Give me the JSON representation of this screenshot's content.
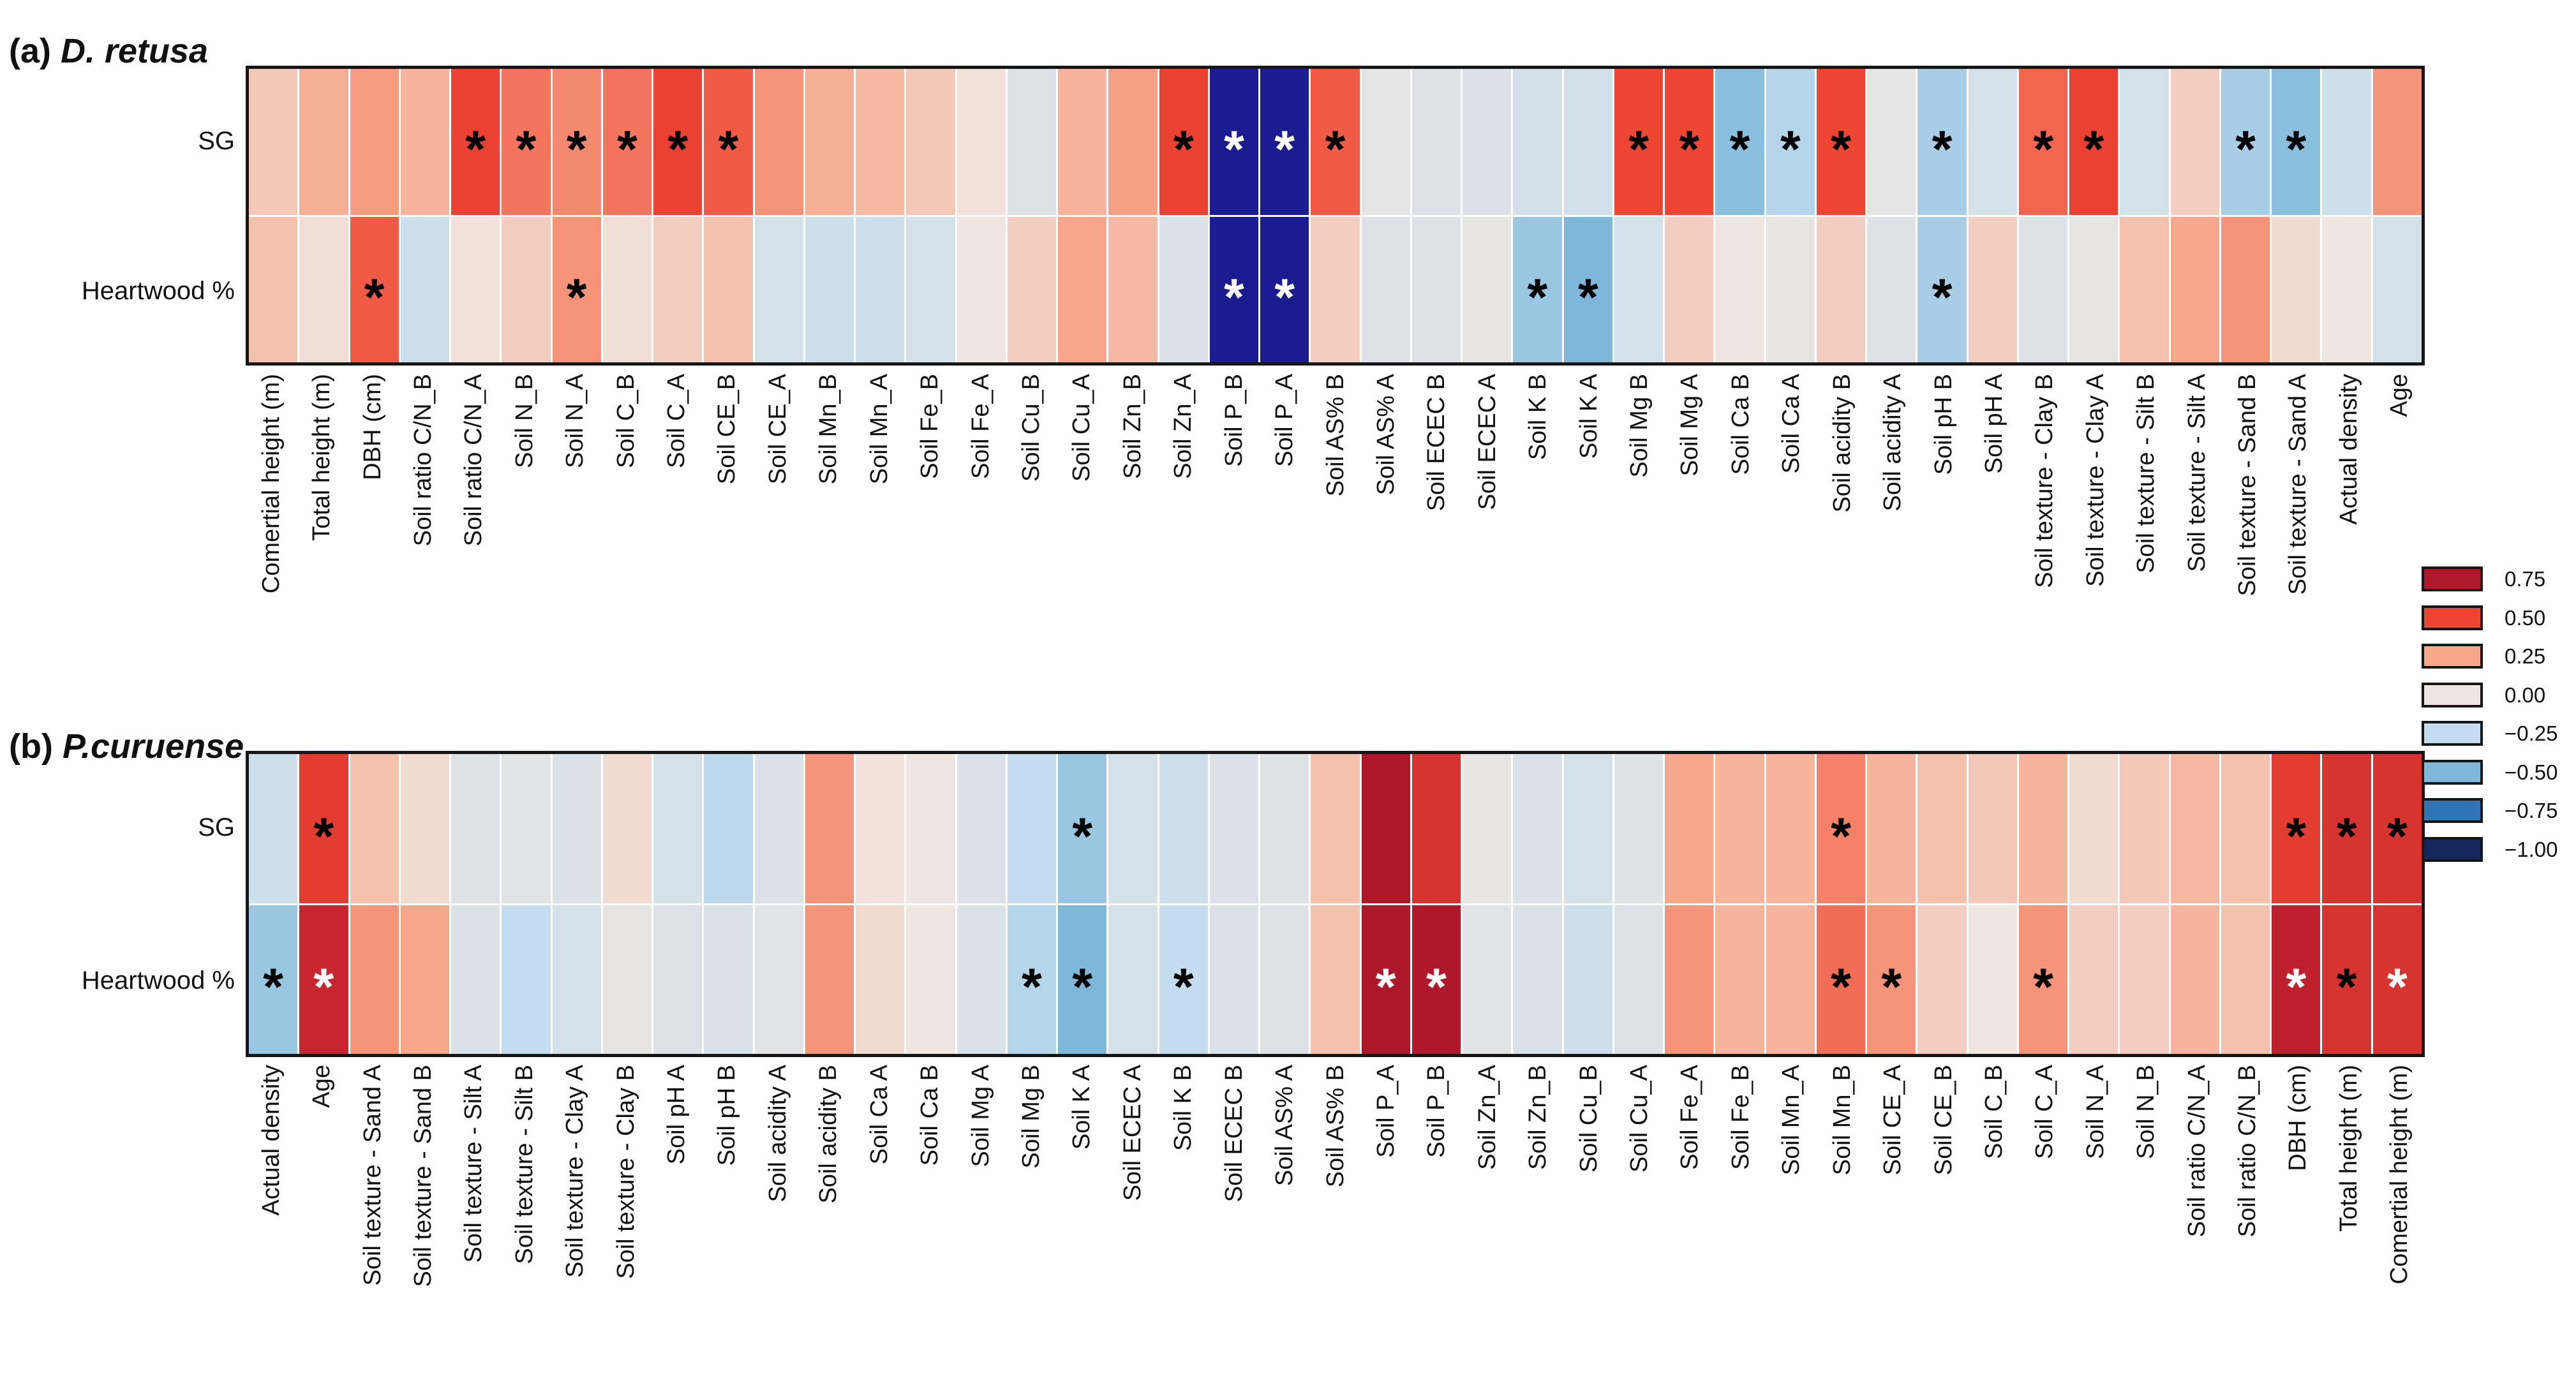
{
  "legend": {
    "labels": [
      "0.75",
      "0.50",
      "0.25",
      "0.00",
      "−0.25",
      "−0.50",
      "−0.75",
      "−1.00"
    ],
    "colors": [
      "#b2182b",
      "#ef4633",
      "#f7a88b",
      "#f0e6e1",
      "#c3ddee",
      "#7db8da",
      "#2d75b4",
      "#14275c"
    ]
  },
  "chart_data": [
    {
      "type": "heatmap",
      "title_prefix": "(a) ",
      "title_italic": "D. retusa",
      "value_range": [
        -1.0,
        1.0
      ],
      "legend_position": "right",
      "grid": "white cell separators",
      "columns": [
        "Comertial height (m)",
        "Total height (m)",
        "DBH (cm)",
        "Soil ratio C/N_B",
        "Soil ratio C/N_A",
        "Soil N_B",
        "Soil N_A",
        "Soil C_B",
        "Soil C_A",
        "Soil CE_B",
        "Soil CE_A",
        "Soil Mn_B",
        "Soil Mn_A",
        "Soil Fe_B",
        "Soil Fe_A",
        "Soil Cu_B",
        "Soil Cu_A",
        "Soil Zn_B",
        "Soil Zn_A",
        "Soil P_B",
        "Soil P_A",
        "Soil AS% B",
        "Soil AS% A",
        "Soil ECEC B",
        "Soil ECEC A",
        "Soil K B",
        "Soil K A",
        "Soil Mg B",
        "Soil Mg A",
        "Soil Ca B",
        "Soil Ca A",
        "Soil acidity B",
        "Soil acidity A",
        "Soil pH B",
        "Soil pH A",
        "Soil texture - Clay B",
        "Soil texture - Clay A",
        "Soil texture - Silt B",
        "Soil texture - Silt A",
        "Soil texture - Sand B",
        "Soil texture - Sand A",
        "Actual density",
        "Age"
      ],
      "series": [
        {
          "name": "SG",
          "values": [
            0.12,
            0.22,
            0.28,
            0.2,
            0.52,
            0.38,
            0.33,
            0.38,
            0.52,
            0.45,
            0.3,
            0.22,
            0.18,
            0.12,
            0.02,
            -0.1,
            0.2,
            0.27,
            0.52,
            -1.0,
            -1.0,
            0.45,
            -0.06,
            -0.1,
            -0.12,
            -0.16,
            -0.16,
            0.5,
            0.5,
            -0.45,
            -0.3,
            0.5,
            -0.06,
            -0.35,
            -0.15,
            0.42,
            0.52,
            -0.15,
            0.1,
            -0.35,
            -0.45,
            -0.2,
            0.3
          ],
          "sig": [
            0,
            0,
            0,
            0,
            1,
            1,
            1,
            1,
            1,
            1,
            0,
            0,
            0,
            0,
            0,
            0,
            0,
            0,
            1,
            2,
            2,
            1,
            0,
            0,
            0,
            0,
            0,
            1,
            1,
            1,
            1,
            1,
            0,
            1,
            0,
            1,
            1,
            0,
            0,
            1,
            1,
            0,
            0
          ]
        },
        {
          "name": "Heartwood %",
          "values": [
            0.15,
            0.03,
            0.45,
            -0.2,
            0.02,
            0.1,
            0.3,
            0.03,
            0.1,
            0.15,
            -0.15,
            -0.2,
            -0.2,
            -0.15,
            0.0,
            0.1,
            0.25,
            0.18,
            -0.12,
            -1.0,
            -1.0,
            0.1,
            -0.1,
            -0.1,
            -0.05,
            -0.4,
            -0.5,
            -0.15,
            0.1,
            0.0,
            -0.05,
            0.1,
            -0.1,
            -0.35,
            0.1,
            -0.1,
            -0.05,
            0.15,
            0.25,
            0.3,
            0.05,
            0.0,
            -0.15
          ],
          "sig": [
            0,
            0,
            1,
            0,
            0,
            0,
            1,
            0,
            0,
            0,
            0,
            0,
            0,
            0,
            0,
            0,
            0,
            0,
            0,
            2,
            2,
            0,
            0,
            0,
            0,
            1,
            1,
            0,
            0,
            0,
            0,
            0,
            0,
            1,
            0,
            0,
            0,
            0,
            0,
            0,
            0,
            0,
            0
          ]
        }
      ]
    },
    {
      "type": "heatmap",
      "title_prefix": "(b) ",
      "title_italic": "P.curuense",
      "value_range": [
        -1.0,
        1.0
      ],
      "legend_position": "right",
      "grid": "white cell separators",
      "columns": [
        "Actual density",
        "Age",
        "Soil texture - Sand A",
        "Soil texture - Sand B",
        "Soil texture - Silt A",
        "Soil texture - Silt B",
        "Soil texture - Clay A",
        "Soil texture - Clay B",
        "Soil pH A",
        "Soil pH B",
        "Soil acidity A",
        "Soil acidity B",
        "Soil Ca A",
        "Soil Ca B",
        "Soil Mg A",
        "Soil Mg B",
        "Soil K A",
        "Soil ECEC A",
        "Soil K B",
        "Soil ECEC B",
        "Soil AS% A",
        "Soil AS% B",
        "Soil P_A",
        "Soil P_B",
        "Soil Zn_A",
        "Soil Zn_B",
        "Soil Cu_B",
        "Soil Cu_A",
        "Soil Fe_A",
        "Soil Fe_B",
        "Soil Mn_A",
        "Soil Mn_B",
        "Soil CE_A",
        "Soil CE_B",
        "Soil C_B",
        "Soil C_A",
        "Soil N_A",
        "Soil N_B",
        "Soil ratio C/N_A",
        "Soil ratio C/N_B",
        "DBH (cm)",
        "Total height (m)",
        "Comertial height (m)"
      ],
      "series": [
        {
          "name": "SG",
          "values": [
            -0.2,
            0.55,
            0.15,
            0.05,
            -0.1,
            -0.08,
            -0.12,
            0.05,
            -0.15,
            -0.28,
            -0.12,
            0.3,
            0.02,
            0.0,
            -0.12,
            -0.25,
            -0.4,
            -0.15,
            -0.2,
            -0.12,
            -0.1,
            0.15,
            0.8,
            0.6,
            -0.05,
            -0.12,
            -0.15,
            -0.1,
            0.25,
            0.2,
            0.2,
            0.35,
            0.2,
            0.15,
            0.12,
            0.2,
            0.05,
            0.12,
            0.18,
            0.15,
            0.55,
            0.6,
            0.6
          ],
          "sig": [
            0,
            1,
            0,
            0,
            0,
            0,
            0,
            0,
            0,
            0,
            0,
            0,
            0,
            0,
            0,
            0,
            1,
            0,
            0,
            0,
            0,
            0,
            0,
            0,
            0,
            0,
            0,
            0,
            0,
            0,
            0,
            1,
            0,
            0,
            0,
            0,
            0,
            0,
            0,
            0,
            1,
            1,
            1
          ]
        },
        {
          "name": "Heartwood %",
          "values": [
            -0.4,
            0.67,
            0.3,
            0.25,
            -0.12,
            -0.25,
            -0.15,
            -0.05,
            -0.1,
            -0.12,
            -0.08,
            0.3,
            0.05,
            0.0,
            -0.12,
            -0.3,
            -0.5,
            -0.15,
            -0.25,
            -0.12,
            -0.1,
            0.15,
            0.8,
            0.78,
            -0.08,
            -0.12,
            -0.2,
            -0.1,
            0.3,
            0.2,
            0.2,
            0.4,
            0.3,
            0.1,
            0.0,
            0.3,
            0.1,
            0.1,
            0.2,
            0.15,
            0.7,
            0.6,
            0.6
          ],
          "sig": [
            1,
            2,
            0,
            0,
            0,
            0,
            0,
            0,
            0,
            0,
            0,
            0,
            0,
            0,
            0,
            1,
            1,
            0,
            1,
            0,
            0,
            0,
            2,
            2,
            0,
            0,
            0,
            0,
            0,
            0,
            0,
            1,
            1,
            0,
            0,
            1,
            0,
            0,
            0,
            0,
            2,
            1,
            2
          ]
        }
      ]
    }
  ],
  "notes": {
    "sig_legend": "asterisk marks significant correlation",
    "star_char": "*"
  }
}
